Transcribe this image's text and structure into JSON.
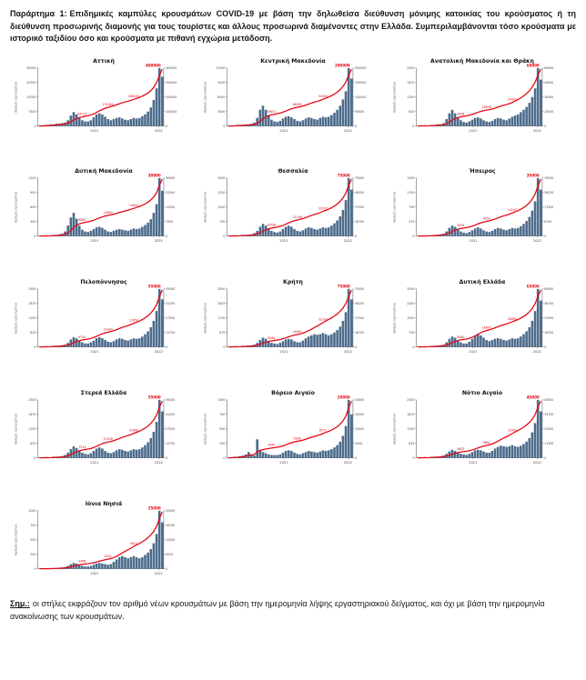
{
  "page": {
    "header_label": "Παράρτημα 1:",
    "header_text": "Επιδημικές καμπύλες κρουσμάτων COVID-19 με βάση την δηλωθείσα διεύθυνση μόνιμης κατοικίας του κρούσματος ή τη διεύθυνση προσωρινής διαμονής για τους τουρίστες και άλλους προσωρινά διαμένοντες στην Ελλάδα. Συμπεριλαμβάνονται τόσο κρούσματα με ιστορικό ταξιδίου όσο και κρούσματα με πιθανή εγχώρια μετάδοση.",
    "footer_label": "Σημ.:",
    "footer_text": "οι στήλες εκφράζουν τον αριθμό νέων κρουσμάτων με βάση την ημερομηνία λήψης εργαστηριακού δείγματος, και όχι με βάση την ημερομηνία ανακοίνωσης των κρουσμάτων."
  },
  "chart_config": {
    "bar_color": "#4d6c8c",
    "line_color": "#e30613",
    "axis_color": "#555555",
    "tick_text_color": "#444444",
    "axis_label_left": "Αριθμός κρουσμάτων",
    "x_tick_labels": [
      {
        "text": "2021",
        "pos": 0.45
      },
      {
        "text": "2022",
        "pos": 0.96
      }
    ],
    "label_indices": [
      15,
      24,
      33
    ],
    "legend": "off",
    "grid": "off"
  },
  "chart_data": [
    {
      "type": "bar",
      "title": "Αττική",
      "left_axis_max": 30000,
      "cumulative_total": 400000,
      "ylim_left": [
        0,
        30000
      ],
      "ylim_right": [
        0,
        400000
      ],
      "bars_normalized": [
        0.01,
        0.01,
        0.02,
        0.02,
        0.03,
        0.03,
        0.04,
        0.04,
        0.05,
        0.06,
        0.1,
        0.18,
        0.24,
        0.2,
        0.14,
        0.1,
        0.08,
        0.08,
        0.1,
        0.15,
        0.2,
        0.22,
        0.2,
        0.16,
        0.12,
        0.1,
        0.12,
        0.14,
        0.15,
        0.13,
        0.11,
        0.1,
        0.12,
        0.14,
        0.13,
        0.14,
        0.17,
        0.2,
        0.25,
        0.32,
        0.45,
        0.65,
        1.0,
        0.85
      ]
    },
    {
      "type": "bar",
      "title": "Κεντρική Μακεδονία",
      "left_axis_max": 12000,
      "cumulative_total": 200000,
      "ylim_left": [
        0,
        12000
      ],
      "ylim_right": [
        0,
        200000
      ],
      "bars_normalized": [
        0.01,
        0.01,
        0.01,
        0.02,
        0.02,
        0.02,
        0.03,
        0.03,
        0.04,
        0.06,
        0.14,
        0.28,
        0.35,
        0.28,
        0.18,
        0.11,
        0.08,
        0.07,
        0.09,
        0.13,
        0.16,
        0.17,
        0.15,
        0.12,
        0.09,
        0.08,
        0.1,
        0.13,
        0.15,
        0.14,
        0.12,
        0.11,
        0.14,
        0.16,
        0.15,
        0.16,
        0.19,
        0.23,
        0.28,
        0.35,
        0.46,
        0.6,
        1.0,
        0.82
      ]
    },
    {
      "type": "bar",
      "title": "Ανατολική Μακεδονία και Θράκη",
      "left_axis_max": 2500,
      "cumulative_total": 60000,
      "ylim_left": [
        0,
        2500
      ],
      "ylim_right": [
        0,
        60000
      ],
      "bars_normalized": [
        0.005,
        0.005,
        0.01,
        0.01,
        0.01,
        0.02,
        0.02,
        0.03,
        0.03,
        0.05,
        0.12,
        0.22,
        0.28,
        0.22,
        0.15,
        0.1,
        0.07,
        0.06,
        0.08,
        0.11,
        0.14,
        0.15,
        0.13,
        0.1,
        0.08,
        0.07,
        0.09,
        0.12,
        0.14,
        0.13,
        0.11,
        0.1,
        0.13,
        0.16,
        0.18,
        0.2,
        0.24,
        0.28,
        0.33,
        0.4,
        0.5,
        0.65,
        1.0,
        0.8
      ]
    },
    {
      "type": "bar",
      "title": "Δυτική Μακεδονία",
      "left_axis_max": 1200,
      "cumulative_total": 30000,
      "ylim_left": [
        0,
        1200
      ],
      "ylim_right": [
        0,
        30000
      ],
      "bars_normalized": [
        0.005,
        0.005,
        0.01,
        0.01,
        0.01,
        0.02,
        0.02,
        0.03,
        0.04,
        0.08,
        0.18,
        0.32,
        0.4,
        0.3,
        0.18,
        0.11,
        0.08,
        0.07,
        0.09,
        0.12,
        0.15,
        0.16,
        0.14,
        0.11,
        0.08,
        0.07,
        0.09,
        0.11,
        0.12,
        0.11,
        0.1,
        0.09,
        0.11,
        0.13,
        0.12,
        0.13,
        0.16,
        0.19,
        0.23,
        0.29,
        0.4,
        0.55,
        1.0,
        0.78
      ]
    },
    {
      "type": "bar",
      "title": "Θεσσαλία",
      "left_axis_max": 3000,
      "cumulative_total": 75000,
      "ylim_left": [
        0,
        3000
      ],
      "ylim_right": [
        0,
        75000
      ],
      "bars_normalized": [
        0.005,
        0.005,
        0.01,
        0.01,
        0.01,
        0.02,
        0.02,
        0.02,
        0.03,
        0.05,
        0.09,
        0.16,
        0.21,
        0.18,
        0.13,
        0.09,
        0.07,
        0.06,
        0.08,
        0.12,
        0.16,
        0.18,
        0.16,
        0.12,
        0.09,
        0.08,
        0.1,
        0.13,
        0.15,
        0.14,
        0.12,
        0.11,
        0.13,
        0.15,
        0.14,
        0.15,
        0.18,
        0.22,
        0.27,
        0.34,
        0.45,
        0.62,
        1.0,
        0.8
      ]
    },
    {
      "type": "bar",
      "title": "Ήπειρος",
      "left_axis_max": 1500,
      "cumulative_total": 35000,
      "ylim_left": [
        0,
        1500
      ],
      "ylim_right": [
        0,
        35000
      ],
      "bars_normalized": [
        0.004,
        0.004,
        0.008,
        0.01,
        0.01,
        0.015,
        0.02,
        0.02,
        0.03,
        0.04,
        0.08,
        0.14,
        0.18,
        0.16,
        0.11,
        0.08,
        0.06,
        0.05,
        0.07,
        0.1,
        0.13,
        0.15,
        0.13,
        0.1,
        0.08,
        0.07,
        0.09,
        0.12,
        0.14,
        0.13,
        0.11,
        0.1,
        0.12,
        0.14,
        0.13,
        0.14,
        0.17,
        0.21,
        0.26,
        0.33,
        0.44,
        0.6,
        1.0,
        0.8
      ]
    },
    {
      "type": "bar",
      "title": "Πελοπόννησος",
      "left_axis_max": 2500,
      "cumulative_total": 55000,
      "ylim_left": [
        0,
        2500
      ],
      "ylim_right": [
        0,
        55000
      ],
      "bars_normalized": [
        0.005,
        0.005,
        0.01,
        0.01,
        0.01,
        0.02,
        0.02,
        0.02,
        0.03,
        0.04,
        0.07,
        0.13,
        0.17,
        0.15,
        0.11,
        0.08,
        0.06,
        0.06,
        0.08,
        0.11,
        0.15,
        0.17,
        0.15,
        0.12,
        0.09,
        0.08,
        0.1,
        0.13,
        0.15,
        0.14,
        0.12,
        0.11,
        0.13,
        0.15,
        0.14,
        0.15,
        0.18,
        0.22,
        0.27,
        0.34,
        0.45,
        0.62,
        1.0,
        0.82
      ]
    },
    {
      "type": "bar",
      "title": "Κρήτη",
      "left_axis_max": 3500,
      "cumulative_total": 75000,
      "ylim_left": [
        0,
        3500
      ],
      "ylim_right": [
        0,
        75000
      ],
      "bars_normalized": [
        0.005,
        0.005,
        0.01,
        0.01,
        0.01,
        0.02,
        0.02,
        0.02,
        0.03,
        0.04,
        0.07,
        0.12,
        0.16,
        0.14,
        0.1,
        0.07,
        0.06,
        0.05,
        0.07,
        0.1,
        0.13,
        0.14,
        0.13,
        0.1,
        0.08,
        0.08,
        0.11,
        0.15,
        0.18,
        0.2,
        0.22,
        0.21,
        0.22,
        0.24,
        0.22,
        0.2,
        0.22,
        0.25,
        0.29,
        0.35,
        0.45,
        0.6,
        1.0,
        0.82
      ]
    },
    {
      "type": "bar",
      "title": "Δυτική Ελλάδα",
      "left_axis_max": 3000,
      "cumulative_total": 65000,
      "ylim_left": [
        0,
        3000
      ],
      "ylim_right": [
        0,
        65000
      ],
      "bars_normalized": [
        0.005,
        0.005,
        0.01,
        0.01,
        0.01,
        0.02,
        0.02,
        0.02,
        0.03,
        0.04,
        0.08,
        0.14,
        0.18,
        0.16,
        0.12,
        0.08,
        0.06,
        0.06,
        0.09,
        0.14,
        0.19,
        0.22,
        0.2,
        0.16,
        0.12,
        0.1,
        0.12,
        0.14,
        0.15,
        0.14,
        0.12,
        0.11,
        0.13,
        0.15,
        0.14,
        0.15,
        0.18,
        0.22,
        0.27,
        0.34,
        0.45,
        0.62,
        1.0,
        0.8
      ]
    },
    {
      "type": "bar",
      "title": "Στερεά Ελλάδα",
      "left_axis_max": 2500,
      "cumulative_total": 55000,
      "ylim_left": [
        0,
        2500
      ],
      "ylim_right": [
        0,
        55000
      ],
      "bars_normalized": [
        0.005,
        0.005,
        0.01,
        0.01,
        0.01,
        0.02,
        0.02,
        0.02,
        0.03,
        0.05,
        0.09,
        0.15,
        0.2,
        0.17,
        0.12,
        0.09,
        0.07,
        0.06,
        0.08,
        0.12,
        0.16,
        0.18,
        0.16,
        0.12,
        0.09,
        0.08,
        0.1,
        0.13,
        0.15,
        0.14,
        0.12,
        0.11,
        0.13,
        0.15,
        0.14,
        0.15,
        0.18,
        0.22,
        0.27,
        0.34,
        0.45,
        0.62,
        1.0,
        0.8
      ]
    },
    {
      "type": "bar",
      "title": "Βόρειο Αιγαίο",
      "left_axis_max": 1000,
      "cumulative_total": 20000,
      "ylim_left": [
        0,
        1000
      ],
      "ylim_right": [
        0,
        20000
      ],
      "bars_normalized": [
        0.01,
        0.01,
        0.02,
        0.02,
        0.03,
        0.04,
        0.06,
        0.1,
        0.06,
        0.04,
        0.32,
        0.14,
        0.1,
        0.08,
        0.06,
        0.05,
        0.05,
        0.05,
        0.06,
        0.09,
        0.12,
        0.13,
        0.12,
        0.09,
        0.07,
        0.06,
        0.08,
        0.1,
        0.12,
        0.11,
        0.1,
        0.09,
        0.11,
        0.13,
        0.12,
        0.13,
        0.15,
        0.18,
        0.22,
        0.28,
        0.38,
        0.55,
        1.0,
        0.75
      ]
    },
    {
      "type": "bar",
      "title": "Νότιο Αιγαίο",
      "left_axis_max": 2500,
      "cumulative_total": 45000,
      "ylim_left": [
        0,
        2500
      ],
      "ylim_right": [
        0,
        45000
      ],
      "bars_normalized": [
        0.005,
        0.005,
        0.01,
        0.01,
        0.01,
        0.02,
        0.02,
        0.02,
        0.03,
        0.04,
        0.07,
        0.11,
        0.14,
        0.12,
        0.09,
        0.07,
        0.06,
        0.05,
        0.07,
        0.1,
        0.13,
        0.14,
        0.13,
        0.11,
        0.09,
        0.09,
        0.12,
        0.16,
        0.19,
        0.21,
        0.2,
        0.19,
        0.2,
        0.22,
        0.2,
        0.19,
        0.21,
        0.24,
        0.28,
        0.34,
        0.44,
        0.6,
        1.0,
        0.8
      ]
    },
    {
      "type": "bar",
      "title": "Ιόνια Νησιά",
      "left_axis_max": 1000,
      "cumulative_total": 25000,
      "ylim_left": [
        0,
        1000
      ],
      "ylim_right": [
        0,
        25000
      ],
      "bars_normalized": [
        0.002,
        0.002,
        0.005,
        0.005,
        0.01,
        0.01,
        0.01,
        0.02,
        0.02,
        0.03,
        0.05,
        0.08,
        0.1,
        0.09,
        0.07,
        0.05,
        0.04,
        0.04,
        0.05,
        0.07,
        0.09,
        0.1,
        0.09,
        0.08,
        0.07,
        0.08,
        0.12,
        0.16,
        0.2,
        0.22,
        0.2,
        0.18,
        0.2,
        0.22,
        0.2,
        0.18,
        0.2,
        0.24,
        0.28,
        0.34,
        0.44,
        0.6,
        1.0,
        0.8
      ]
    }
  ]
}
